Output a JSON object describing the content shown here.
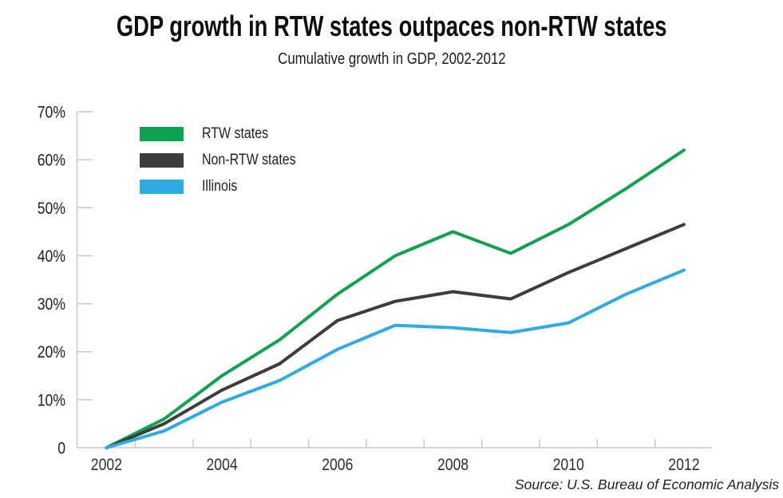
{
  "header": {
    "title": "GDP growth in RTW states outpaces non-RTW states",
    "subtitle": "Cumulative growth in GDP, 2002-2012"
  },
  "footer": {
    "source": "Source: U.S. Bureau of Economic Analysis"
  },
  "chart_data": {
    "type": "line",
    "title": "GDP growth in RTW states outpaces non-RTW states",
    "subtitle": "Cumulative growth in GDP, 2002-2012",
    "x": [
      2002,
      2003,
      2004,
      2005,
      2006,
      2007,
      2008,
      2009,
      2010,
      2011,
      2012
    ],
    "x_tick_labels": [
      "2002",
      "2004",
      "2006",
      "2008",
      "2010",
      "2012"
    ],
    "y_tick_labels": [
      "70%",
      "60%",
      "50%",
      "40%",
      "30%",
      "20%",
      "10%",
      "0"
    ],
    "ylim": [
      0,
      70
    ],
    "y_unit": "%",
    "grid": false,
    "legend_position": "top-left",
    "axis_color": "#c9c9c9",
    "label_color": "#2e2e2e",
    "series": [
      {
        "name": "RTW states",
        "color": "#0fa24f",
        "values": [
          0,
          6,
          15,
          22.5,
          32,
          40,
          45,
          40.5,
          46.5,
          54,
          62
        ]
      },
      {
        "name": "Non-RTW states",
        "color": "#3d3d3d",
        "values": [
          0,
          5,
          12,
          17.5,
          26.5,
          30.5,
          32.5,
          31,
          36.5,
          41.5,
          46.5
        ]
      },
      {
        "name": "Illinois",
        "color": "#2fabe1",
        "values": [
          0,
          3.5,
          9.5,
          14,
          20.5,
          25.5,
          25,
          24,
          26,
          32,
          37
        ]
      }
    ]
  }
}
